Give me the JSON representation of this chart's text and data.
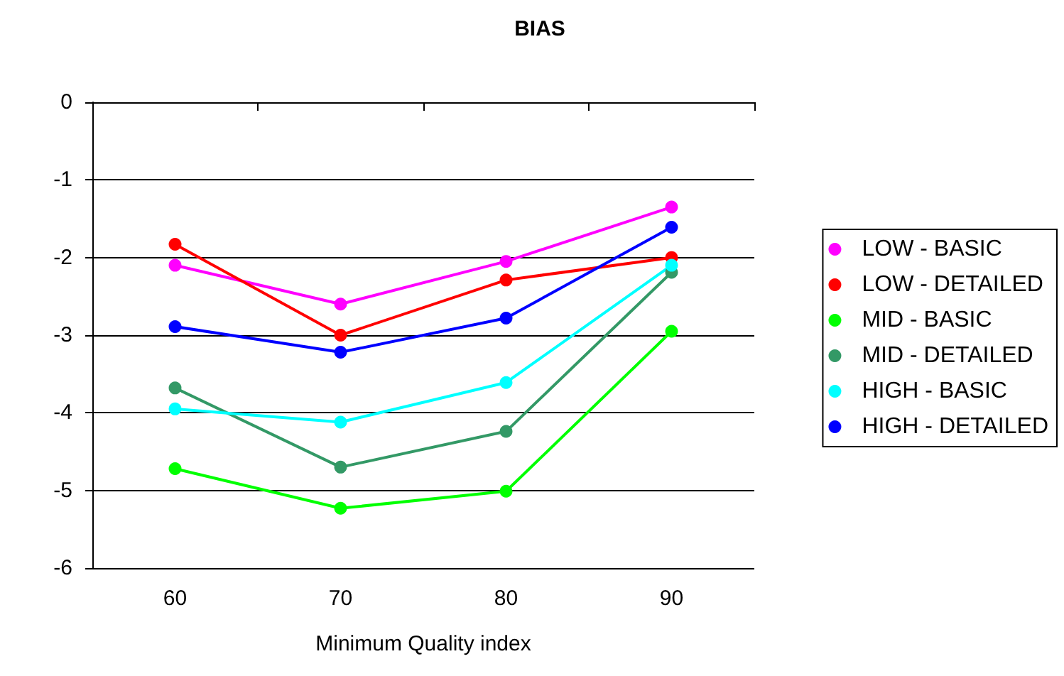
{
  "chart_data": {
    "type": "line",
    "title": "BIAS",
    "xlabel": "Minimum Quality index",
    "categories": [
      "60",
      "70",
      "80",
      "90"
    ],
    "series": [
      {
        "name": "LOW - BASIC",
        "color": "#ff00ff",
        "values": [
          -2.1,
          -2.6,
          -2.05,
          -1.35
        ]
      },
      {
        "name": "LOW - DETAILED",
        "color": "#ff0000",
        "values": [
          -1.83,
          -3.0,
          -2.29,
          -2.0
        ]
      },
      {
        "name": "MID - BASIC",
        "color": "#00ff00",
        "values": [
          -4.72,
          -5.23,
          -5.01,
          -2.95
        ]
      },
      {
        "name": "MID - DETAILED",
        "color": "#339966",
        "values": [
          -3.68,
          -4.7,
          -4.24,
          -2.19
        ]
      },
      {
        "name": "HIGH - BASIC",
        "color": "#00ffff",
        "values": [
          -3.95,
          -4.12,
          -3.61,
          -2.1
        ]
      },
      {
        "name": "HIGH - DETAILED",
        "color": "#0000ff",
        "values": [
          -2.89,
          -3.22,
          -2.78,
          -1.61
        ]
      }
    ],
    "ylim": [
      -6,
      0
    ],
    "yticks": [
      -6,
      -5,
      -4,
      -3,
      -2,
      -1,
      0
    ],
    "grid": "y",
    "legend": "right",
    "marker": "circle",
    "line_style": "solid"
  }
}
